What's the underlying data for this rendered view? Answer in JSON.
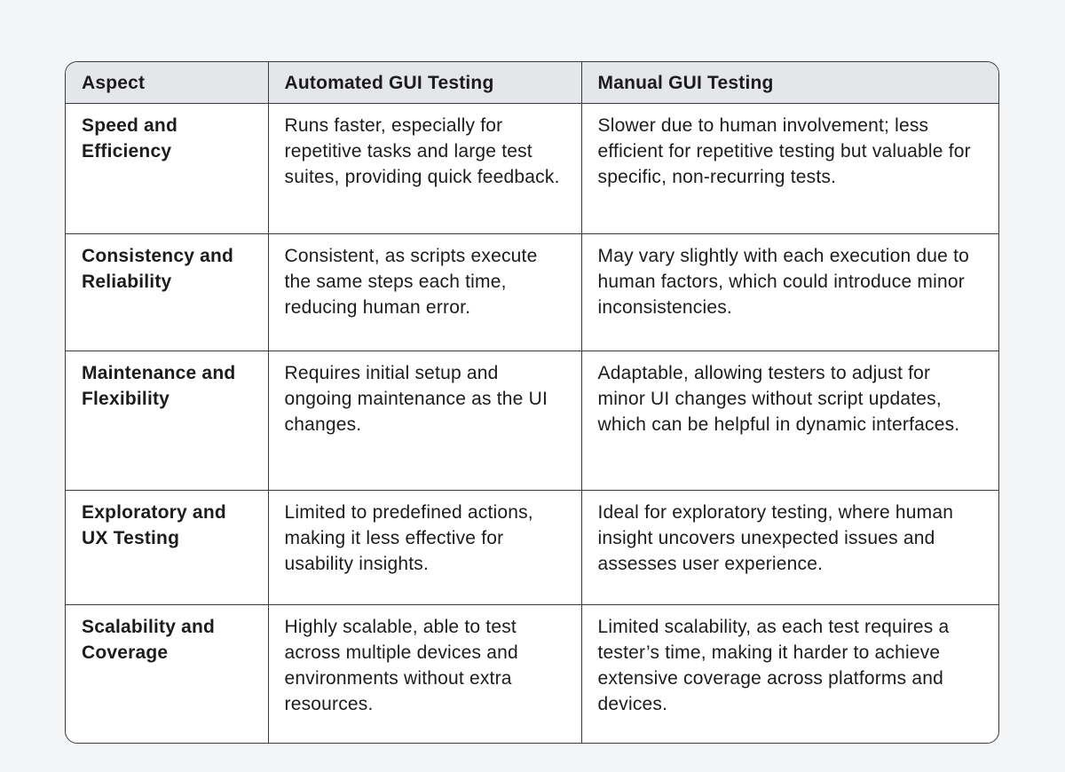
{
  "table": {
    "headers": [
      "Aspect",
      "Automated GUI Testing",
      "Manual GUI Testing"
    ],
    "rows": [
      [
        "Speed and Efficiency",
        "Runs faster, especially for repetitive tasks and large test suites, providing quick feedback.",
        "Slower due to human involvement; less efficient for repetitive testing but valuable for specific, non-recurring tests."
      ],
      [
        "Consistency and Reliability",
        "Consistent, as scripts execute the same steps each time, reducing human error.",
        "May vary slightly with each execution due to human factors, which could introduce minor inconsistencies."
      ],
      [
        "Maintenance and Flexibility",
        "Requires initial setup and ongoing maintenance as the UI changes.",
        "Adaptable, allowing testers to adjust for minor UI changes without script updates, which can be helpful in dynamic interfaces."
      ],
      [
        "Exploratory and UX Testing",
        "Limited to predefined actions, making it less effective for usability insights.",
        "Ideal for exploratory testing, where human insight uncovers unexpected issues and assesses user experience."
      ],
      [
        "Scalability and Coverage",
        "Highly scalable, able to test across multiple devices and environments without extra resources.",
        "Limited scalability, as each test requires a tester’s time, making it harder to achieve extensive coverage across platforms and devices."
      ]
    ]
  }
}
